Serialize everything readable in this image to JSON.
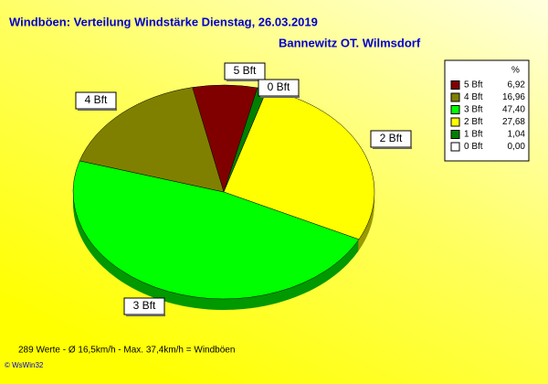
{
  "chart_data": {
    "type": "pie",
    "title": "Windböen: Verteilung Windstärke  Dienstag, 26.03.2019",
    "subtitle": "Bannewitz OT. Wilmsdorf",
    "legend_header": "%",
    "categories": [
      "5 Bft",
      "4 Bft",
      "3 Bft",
      "2 Bft",
      "1 Bft",
      "0 Bft"
    ],
    "values": [
      6.92,
      16.96,
      47.4,
      27.68,
      1.04,
      0.0
    ],
    "value_labels": [
      "6,92",
      "16,96",
      "47,40",
      "27,68",
      "1,04",
      "0,00"
    ],
    "colors": [
      "#800000",
      "#808000",
      "#00ff00",
      "#ffff00",
      "#008000",
      "#ffffff"
    ],
    "legend": "right",
    "footnote": "289 Werte   -   Ø 16,5km/h  -  Max. 37,4km/h = Windböen",
    "credit": "© WsWin32"
  }
}
